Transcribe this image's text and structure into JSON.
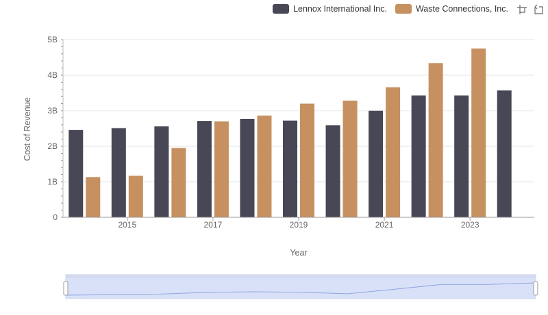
{
  "legend": {
    "items": [
      {
        "label": "Lennox International Inc.",
        "color": "#474755"
      },
      {
        "label": "Waste Connections, Inc.",
        "color": "#c69060"
      }
    ]
  },
  "toolbar": {
    "icons": [
      "zoom-icon",
      "reset-zoom-icon"
    ]
  },
  "chart_data": {
    "type": "bar",
    "xlabel": "Year",
    "ylabel": "Cost of Revenue",
    "ylim": [
      0,
      5000000000
    ],
    "yticks": [
      "0",
      "1B",
      "2B",
      "3B",
      "4B",
      "5B"
    ],
    "categories": [
      "2014",
      "2015",
      "2016",
      "2017",
      "2018",
      "2019",
      "2020",
      "2021",
      "2022",
      "2023",
      "2024"
    ],
    "xtick_labels": [
      "2015",
      "2017",
      "2019",
      "2021",
      "2023"
    ],
    "series": [
      {
        "name": "Lennox International Inc.",
        "color": "#474755",
        "values": [
          2460000000,
          2510000000,
          2560000000,
          2710000000,
          2770000000,
          2720000000,
          2590000000,
          3000000000,
          3430000000,
          3430000000,
          3570000000
        ]
      },
      {
        "name": "Waste Connections, Inc.",
        "color": "#c69060",
        "values": [
          1130000000,
          1170000000,
          1950000000,
          2700000000,
          2860000000,
          3200000000,
          3280000000,
          3660000000,
          4340000000,
          4750000000,
          null
        ]
      }
    ],
    "grid": true,
    "legend_position": "top-right",
    "navigator": true
  }
}
